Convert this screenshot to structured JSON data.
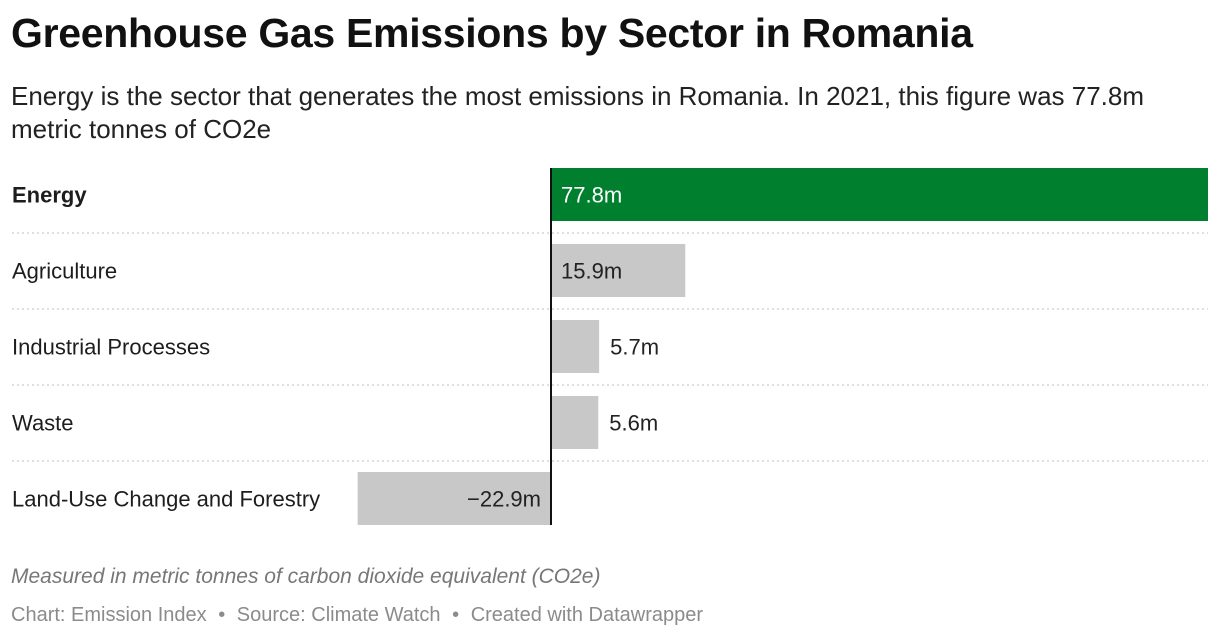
{
  "title": "Greenhouse Gas Emissions by Sector in Romania",
  "subtitle": "Energy is the sector that generates the most emissions in Romania. In 2021, this figure was 77.8m metric tonnes of CO2e",
  "notes": "Measured in metric tonnes of carbon dioxide equivalent (CO2e)",
  "footer": {
    "chart": "Chart: Emission Index",
    "source": "Source: Climate Watch",
    "created": "Created with Datawrapper",
    "separator": "•"
  },
  "colors": {
    "highlight": "#00802f",
    "default": "#c8c8c8",
    "axis": "#111111",
    "gridline": "#cccccc"
  },
  "chart_data": {
    "type": "bar",
    "orientation": "horizontal",
    "categories": [
      "Energy",
      "Agriculture",
      "Industrial Processes",
      "Waste",
      "Land-Use Change and Forestry"
    ],
    "values": [
      77.8,
      15.9,
      5.7,
      5.6,
      -22.9
    ],
    "value_labels": [
      "77.8m",
      "15.9m",
      "5.7m",
      "5.6m",
      "−22.9m"
    ],
    "highlighted": [
      "Energy"
    ],
    "grid": false
  }
}
